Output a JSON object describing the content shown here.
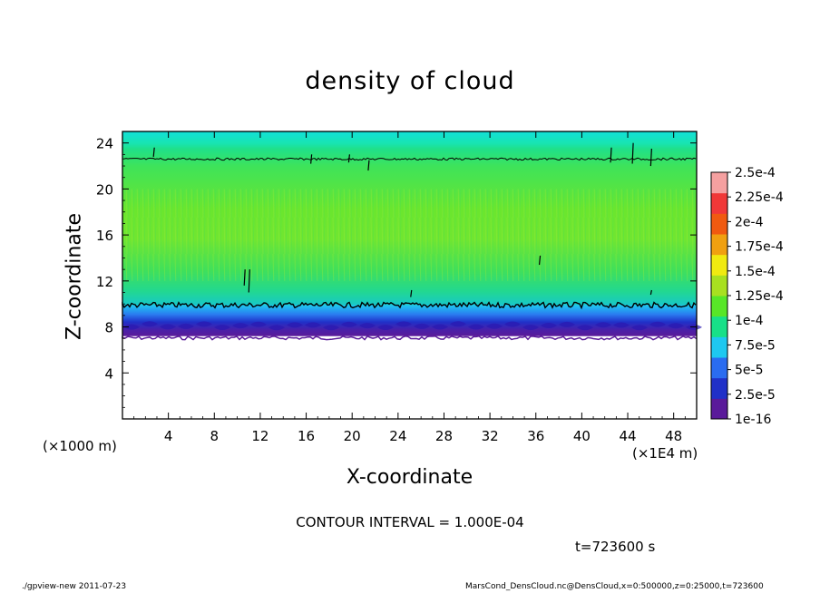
{
  "chart_data": {
    "type": "heatmap",
    "title": "density of cloud",
    "xlabel": "X-coordinate",
    "ylabel": "Z-coordinate",
    "x_unit_label": "(×1E4 m)",
    "y_unit_label": "(×1000 m)",
    "xlim": [
      0,
      50
    ],
    "ylim": [
      0,
      25
    ],
    "xticks": [
      4,
      8,
      12,
      16,
      20,
      24,
      28,
      32,
      36,
      40,
      44,
      48
    ],
    "yticks": [
      4,
      8,
      12,
      16,
      20,
      24
    ],
    "colorbar": {
      "labels": [
        "1e-16",
        "2.5e-5",
        "5e-5",
        "7.5e-5",
        "1e-4",
        "1.25e-4",
        "1.5e-4",
        "1.75e-4",
        "2e-4",
        "2.25e-4",
        "2.5e-4"
      ],
      "colors": [
        "#5a1a9a",
        "#2030c8",
        "#2a6cf0",
        "#1ec8f0",
        "#18e088",
        "#58e628",
        "#a8e020",
        "#f0ea10",
        "#f0a010",
        "#f05a10",
        "#f03838",
        "#f5a0a0"
      ]
    },
    "layers": [
      {
        "z_from": 0,
        "z_to": 7.2,
        "value": "none"
      },
      {
        "z_from": 7.2,
        "z_to": 8.8,
        "value": "1e-16 to 5e-5"
      },
      {
        "z_from": 8.8,
        "z_to": 9.9,
        "value": "5e-5 to 1e-4"
      },
      {
        "z_from": 9.9,
        "z_to": 22.5,
        "value": "1e-4 to 1.5e-4"
      },
      {
        "z_from": 22.5,
        "z_to": 25,
        "value": "7.5e-5 to 1e-4"
      }
    ],
    "contours": [
      {
        "value": "1e-4",
        "z": 9.9
      },
      {
        "value": "1e-4",
        "z": 22.6
      }
    ],
    "contour_interval": "CONTOUR INTERVAL = 1.000E-04",
    "time_label": "t=723600 s"
  },
  "footer": {
    "left": "./gpview-new   2011-07-23",
    "right": "MarsCond_DensCloud.nc@DensCloud,x=0:500000,z=0:25000,t=723600"
  }
}
